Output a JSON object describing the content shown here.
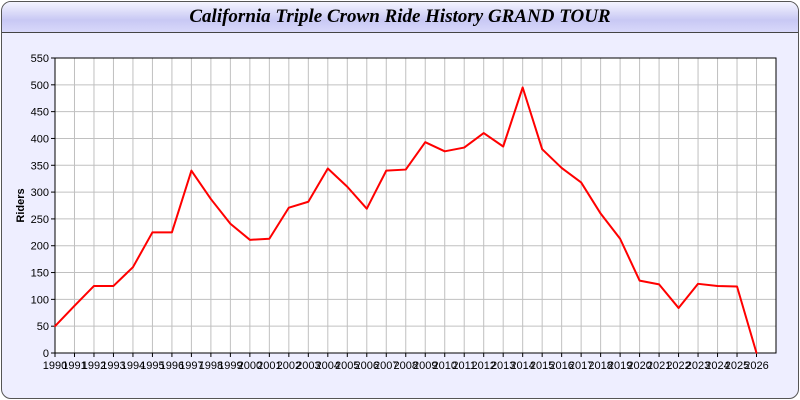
{
  "chart_data": {
    "type": "line",
    "title": "California Triple Crown Ride History GRAND TOUR",
    "xlabel": "",
    "ylabel": "Riders",
    "ylim": [
      0,
      550
    ],
    "yticks": [
      0,
      50,
      100,
      150,
      200,
      250,
      300,
      350,
      400,
      450,
      500,
      550
    ],
    "grid": true,
    "line_color": "#ff0000",
    "categories": [
      "1990",
      "1991",
      "1992",
      "1993",
      "1994",
      "1995",
      "1996",
      "1997",
      "1998",
      "1999",
      "2000",
      "2001",
      "2002",
      "2003",
      "2004",
      "2005",
      "2006",
      "2007",
      "2008",
      "2009",
      "2010",
      "2011",
      "2012",
      "2013",
      "2014",
      "2015",
      "2016",
      "2017",
      "2018",
      "2019",
      "2020",
      "2021",
      "2022",
      "2023",
      "2024",
      "2025",
      "2026"
    ],
    "values": [
      50,
      88,
      125,
      125,
      160,
      225,
      225,
      340,
      287,
      241,
      211,
      213,
      271,
      282,
      344,
      310,
      269,
      340,
      342,
      393,
      376,
      383,
      410,
      385,
      495,
      380,
      345,
      318,
      260,
      213,
      135,
      128,
      84,
      129,
      125,
      124,
      0
    ]
  }
}
